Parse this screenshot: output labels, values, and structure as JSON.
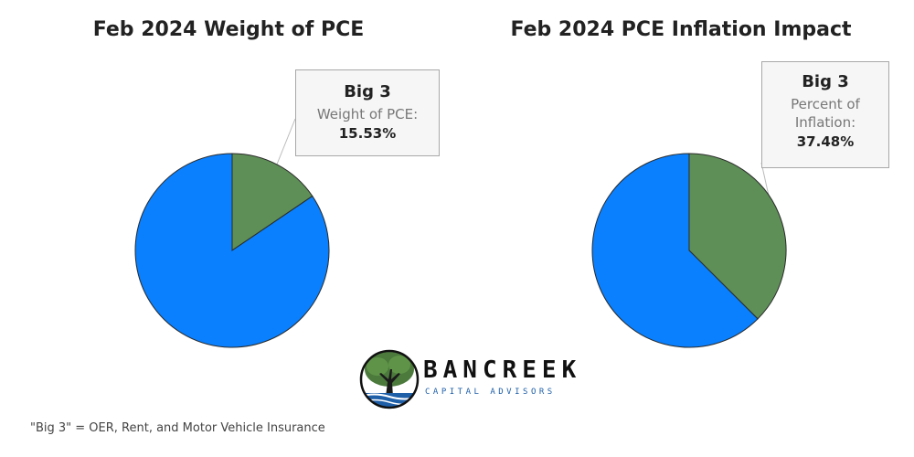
{
  "chart_data": [
    {
      "type": "pie",
      "title": "Feb 2024 Weight of PCE",
      "slices": [
        {
          "name": "Big 3",
          "value": 15.53,
          "color": "#5e8f57"
        },
        {
          "name": "",
          "value": 84.47,
          "color": "#0a80fe"
        }
      ],
      "callout": {
        "title": "Big 3",
        "label": "Weight of PCE:",
        "value": "15.53%"
      }
    },
    {
      "type": "pie",
      "title": "Feb 2024 PCE Inflation Impact",
      "slices": [
        {
          "name": "Big 3",
          "value": 37.48,
          "color": "#5e8f57"
        },
        {
          "name": "",
          "value": 62.52,
          "color": "#0a80fe"
        }
      ],
      "callout": {
        "title": "Big 3",
        "label": "Percent of Inflation:",
        "value": "37.48%"
      }
    }
  ],
  "logo": {
    "name": "BANCREEK",
    "tagline": "CAPITAL ADVISORS"
  },
  "footnote": "\"Big 3\" = OER, Rent, and Motor Vehicle Insurance",
  "colors": {
    "big3": "#5e8f57",
    "other": "#0a80fe",
    "callout_bg": "#f6f6f6",
    "callout_border": "#a8a8a8"
  }
}
